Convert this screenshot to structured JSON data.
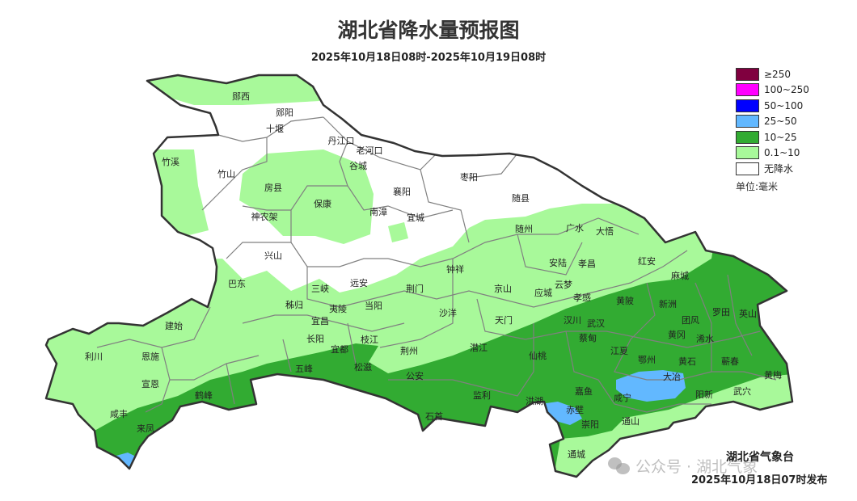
{
  "title": "湖北省降水量预报图",
  "subtitle": "2025年10月18日08时-2025年10月19日08时",
  "legend": {
    "items": [
      {
        "label": "≥250",
        "color": "#80003f"
      },
      {
        "label": "100~250",
        "color": "#ff00ff"
      },
      {
        "label": "50~100",
        "color": "#0000ff"
      },
      {
        "label": "25~50",
        "color": "#62b8ff"
      },
      {
        "label": "10~25",
        "color": "#32ab32"
      },
      {
        "label": "0.1~10",
        "color": "#a8f99a"
      },
      {
        "label": "无降水",
        "color": "#ffffff"
      }
    ],
    "unit": "单位:毫米"
  },
  "places": [
    "郧西",
    "郧阳",
    "十堰",
    "丹江口",
    "老河口",
    "谷城",
    "竹溪",
    "竹山",
    "房县",
    "保康",
    "襄阳",
    "枣阳",
    "随县",
    "南漳",
    "宜城",
    "神农架",
    "兴山",
    "巴东",
    "三峡",
    "远安",
    "荆门",
    "钟祥",
    "京山",
    "应城",
    "安陆",
    "孝昌",
    "云梦",
    "孝感",
    "随州",
    "广水",
    "大悟",
    "红安",
    "麻城",
    "黄陂",
    "新洲",
    "罗田",
    "英山",
    "团风",
    "黄冈",
    "浠水",
    "汉川",
    "武汉",
    "蔡甸",
    "江夏",
    "鄂州",
    "黄石",
    "大冶",
    "蕲春",
    "黄梅",
    "武穴",
    "阳新",
    "咸宁",
    "嘉鱼",
    "赤壁",
    "崇阳",
    "通山",
    "通城",
    "洪湖",
    "监利",
    "石首",
    "公安",
    "荆州",
    "潜江",
    "仙桃",
    "天门",
    "沙洋",
    "松滋",
    "枝江",
    "宜都",
    "五峰",
    "长阳",
    "宜昌",
    "夷陵",
    "当阳",
    "秭归",
    "鹤峰",
    "来凤",
    "咸丰",
    "宣恩",
    "恩施",
    "利川",
    "建始"
  ],
  "footer": {
    "agency": "湖北省气象台",
    "issued": "2025年10月18日07时发布",
    "watermark": "公众号 · 湖北气象"
  }
}
